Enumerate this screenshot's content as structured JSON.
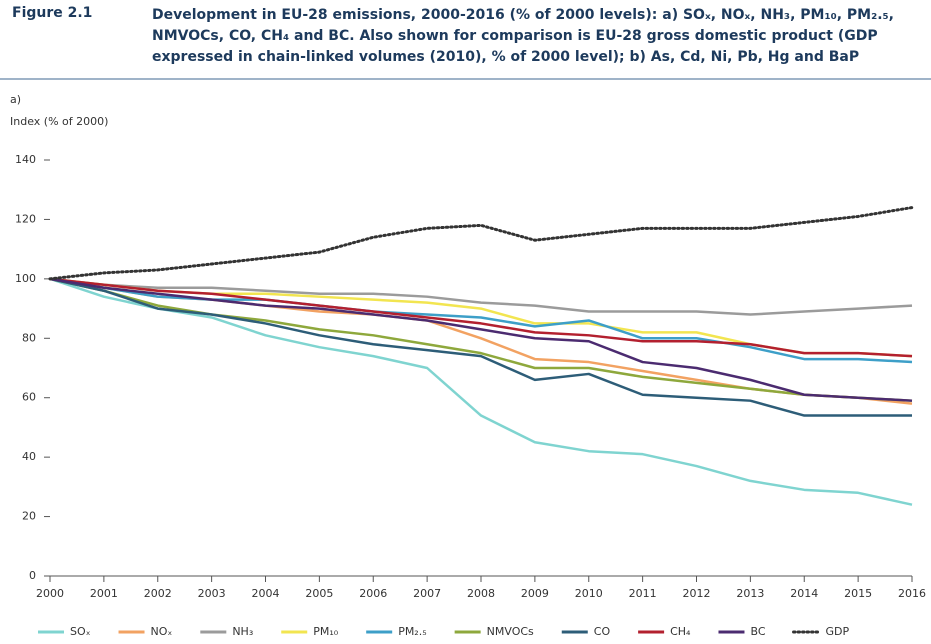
{
  "figure_label": "Figure 2.1",
  "figure_title": "Development in EU-28 emissions, 2000-2016 (% of 2000 levels): a) SOₓ, NOₓ, NH₃, PM₁₀, PM₂.₅, NMVOCs, CO, CH₄ and BC. Also shown for comparison is EU-28 gross domestic product (GDP expressed in chain-linked volumes (2010), % of 2000 level); b) As, Cd, Ni, Pb, Hg and BaP",
  "chart_data": {
    "type": "line",
    "panel_label": "a)",
    "y_label": "Index (% of 2000)",
    "x": [
      2000,
      2001,
      2002,
      2003,
      2004,
      2005,
      2006,
      2007,
      2008,
      2009,
      2010,
      2011,
      2012,
      2013,
      2014,
      2015,
      2016
    ],
    "xlim": [
      2000,
      2016
    ],
    "xticks": [
      2000,
      2001,
      2002,
      2003,
      2004,
      2005,
      2006,
      2007,
      2008,
      2009,
      2010,
      2011,
      2012,
      2013,
      2014,
      2015,
      2016
    ],
    "ylim": [
      0,
      140
    ],
    "yticks": [
      0,
      20,
      40,
      60,
      80,
      100,
      120,
      140
    ],
    "grid": false,
    "legend": "bottom",
    "series": [
      {
        "name": "SOₓ",
        "color": "#7fd4d0",
        "values": [
          100,
          94,
          90,
          87,
          81,
          77,
          74,
          70,
          54,
          45,
          42,
          41,
          37,
          32,
          29,
          28,
          24
        ]
      },
      {
        "name": "NOₓ",
        "color": "#f2a262",
        "values": [
          100,
          97,
          94,
          93,
          91,
          89,
          88,
          86,
          80,
          73,
          72,
          69,
          66,
          63,
          61,
          60,
          58
        ]
      },
      {
        "name": "NH₃",
        "color": "#9b9b9b",
        "values": [
          100,
          98,
          97,
          97,
          96,
          95,
          95,
          94,
          92,
          91,
          89,
          89,
          89,
          88,
          89,
          90,
          91
        ]
      },
      {
        "name": "PM₁₀",
        "color": "#f2e550",
        "values": [
          100,
          98,
          96,
          95,
          95,
          94,
          93,
          92,
          90,
          85,
          85,
          82,
          82,
          78,
          75,
          75,
          74
        ]
      },
      {
        "name": "PM₂.₅",
        "color": "#3d9fc8",
        "values": [
          100,
          97,
          94,
          93,
          93,
          91,
          89,
          88,
          87,
          84,
          86,
          80,
          80,
          77,
          73,
          73,
          72
        ]
      },
      {
        "name": "NMVOCs",
        "color": "#8ea83c",
        "values": [
          100,
          96,
          91,
          88,
          86,
          83,
          81,
          78,
          75,
          70,
          70,
          67,
          65,
          63,
          61,
          60,
          59
        ]
      },
      {
        "name": "CO",
        "color": "#2d5d78",
        "values": [
          100,
          96,
          90,
          88,
          85,
          81,
          78,
          76,
          74,
          66,
          68,
          61,
          60,
          59,
          54,
          54,
          54
        ]
      },
      {
        "name": "CH₄",
        "color": "#b3202f",
        "values": [
          100,
          98,
          96,
          95,
          93,
          91,
          89,
          87,
          85,
          82,
          81,
          79,
          79,
          78,
          75,
          75,
          74
        ]
      },
      {
        "name": "BC",
        "color": "#4b2b70",
        "values": [
          100,
          97,
          95,
          93,
          91,
          90,
          88,
          86,
          83,
          80,
          79,
          72,
          70,
          66,
          61,
          60,
          59
        ]
      },
      {
        "name": "GDP",
        "color": "#333333",
        "dotted": true,
        "values": [
          100,
          102,
          103,
          105,
          107,
          109,
          114,
          117,
          118,
          113,
          115,
          117,
          117,
          117,
          119,
          121,
          124
        ]
      }
    ]
  }
}
